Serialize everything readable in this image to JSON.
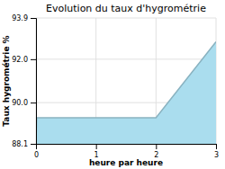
{
  "chart_data": {
    "type": "area",
    "title": "Evolution du taux d'hygrométrie",
    "x_label": "heure par heure",
    "y_label": "Taux hygrométrie %",
    "x": [
      0,
      0.01,
      2,
      3
    ],
    "values": [
      88.1,
      89.3,
      89.3,
      92.8
    ],
    "color": "#aaddee",
    "xlim": [
      0,
      3
    ],
    "ylim": [
      88.1,
      93.9
    ],
    "xticks": [
      0,
      1,
      2,
      3
    ],
    "yticks": [
      88.1,
      {
        "value": 90.0,
        "label": "90.0"
      },
      {
        "value": 92.0,
        "label": "92.0"
      },
      93.9
    ],
    "grid": true
  }
}
